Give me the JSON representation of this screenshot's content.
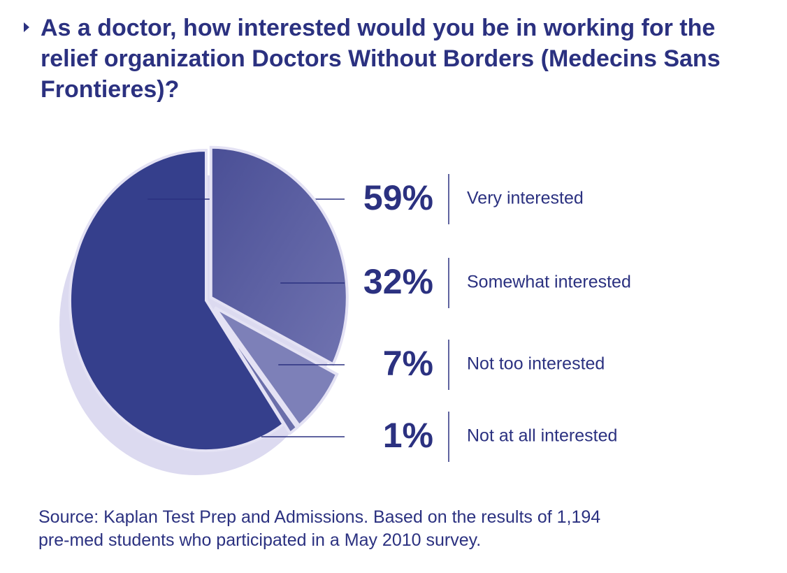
{
  "chart_data": {
    "type": "pie",
    "title": "As a doctor, how interested would you be in working for the relief organization Doctors Without Borders (Medecins Sans Frontieres)?",
    "categories": [
      "Very interested",
      "Somewhat interested",
      "Not too interested",
      "Not at all interested"
    ],
    "values": [
      59,
      32,
      7,
      1
    ],
    "value_labels": [
      "59%",
      "32%",
      "7%",
      "1%"
    ],
    "colors": [
      "#353f8c",
      "#5c60a3",
      "#7d80b8",
      "#6a6eaa"
    ],
    "source": "Source: Kaplan Test Prep and Admissions. Based on the results of 1,194 pre-med students who participated in a May 2010 survey."
  }
}
